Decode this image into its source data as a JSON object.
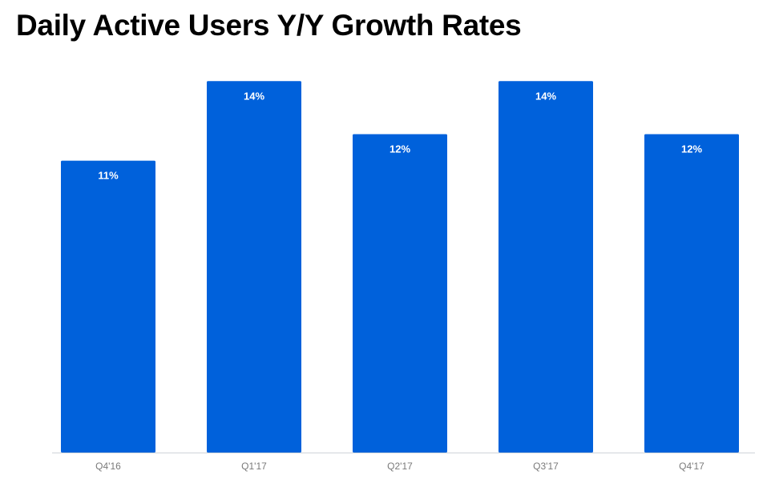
{
  "chart_data": {
    "type": "bar",
    "title": "Daily Active Users Y/Y Growth Rates",
    "categories": [
      "Q4'16",
      "Q1'17",
      "Q2'17",
      "Q3'17",
      "Q4'17"
    ],
    "values": [
      11,
      14,
      12,
      14,
      12
    ],
    "labels": [
      "11%",
      "14%",
      "12%",
      "14%",
      "12%"
    ],
    "value_unit": "%",
    "xlabel": "",
    "ylabel": "",
    "ylim": [
      0,
      16
    ],
    "grid": false,
    "legend": "none",
    "colors": {
      "bar": "#0061DB",
      "bar_label": "#ffffff",
      "axis_line": "#cfd4da",
      "tick_label": "#7a7a7a"
    }
  }
}
